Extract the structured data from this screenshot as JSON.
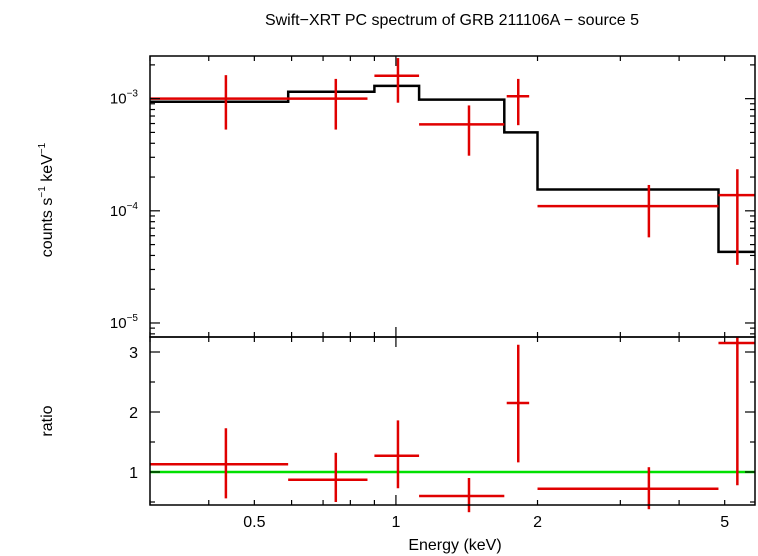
{
  "chart_data": {
    "type": "scatter",
    "title": "Swift−XRT PC spectrum of GRB 211106A − source 5",
    "xlabel": "Energy (keV)",
    "x_scale": "log",
    "xlim": [
      0.3,
      5.8
    ],
    "x_ticks": [
      {
        "value": 0.5,
        "label": "0.5"
      },
      {
        "value": 1,
        "label": "1"
      },
      {
        "value": 2,
        "label": "2"
      },
      {
        "value": 5,
        "label": "5"
      }
    ],
    "panels": [
      {
        "id": "spectrum",
        "ylabel_main": "counts s",
        "ylabel_sup1": "−1",
        "ylabel_mid": " keV",
        "ylabel_sup2": "−1",
        "y_scale": "log",
        "ylim": [
          7.5e-06,
          0.0024
        ],
        "y_ticks": [
          {
            "value": 0.001,
            "base": "10",
            "exp": "−3"
          },
          {
            "value": 0.0001,
            "base": "10",
            "exp": "−4"
          },
          {
            "value": 1e-05,
            "base": "10",
            "exp": "−5"
          }
        ],
        "series": [
          {
            "type": "errorbar",
            "color": "#e00000",
            "points": [
              {
                "x": 0.435,
                "xlo": 0.3,
                "xhi": 0.59,
                "y": 0.001,
                "ylo": 0.00053,
                "yhi": 0.00162
              },
              {
                "x": 0.745,
                "xlo": 0.59,
                "xhi": 0.87,
                "y": 0.001,
                "ylo": 0.00053,
                "yhi": 0.0015
              },
              {
                "x": 1.01,
                "xlo": 0.9,
                "xhi": 1.12,
                "y": 0.0016,
                "ylo": 0.00092,
                "yhi": 0.0023
              },
              {
                "x": 1.43,
                "xlo": 1.12,
                "xhi": 1.7,
                "y": 0.00059,
                "ylo": 0.00031,
                "yhi": 0.00087
              },
              {
                "x": 1.82,
                "xlo": 1.72,
                "xhi": 1.92,
                "y": 0.00105,
                "ylo": 0.00058,
                "yhi": 0.0015
              },
              {
                "x": 3.45,
                "xlo": 2.0,
                "xhi": 4.85,
                "y": 0.00011,
                "ylo": 5.8e-05,
                "yhi": 0.00017
              },
              {
                "x": 5.32,
                "xlo": 4.85,
                "xhi": 5.8,
                "y": 0.000138,
                "ylo": 3.3e-05,
                "yhi": 0.000235
              }
            ]
          },
          {
            "type": "step",
            "color": "#000000",
            "edges": [
              0.3,
              0.59,
              0.9,
              1.12,
              1.7,
              2.0,
              4.85,
              5.8
            ],
            "values": [
              0.00094,
              0.00115,
              0.0013,
              0.00098,
              0.0005,
              0.000155,
              4.3e-05
            ]
          }
        ]
      },
      {
        "id": "ratio",
        "ylabel": "ratio",
        "y_scale": "linear",
        "ylim": [
          0.45,
          3.25
        ],
        "y_ticks": [
          {
            "value": 1,
            "label": "1"
          },
          {
            "value": 2,
            "label": "2"
          },
          {
            "value": 3,
            "label": "3"
          }
        ],
        "reference_line": {
          "y": 1,
          "color": "#00e000"
        },
        "series": [
          {
            "type": "errorbar",
            "color": "#e00000",
            "points": [
              {
                "x": 0.435,
                "xlo": 0.3,
                "xhi": 0.59,
                "y": 1.13,
                "ylo": 0.56,
                "yhi": 1.73
              },
              {
                "x": 0.745,
                "xlo": 0.59,
                "xhi": 0.87,
                "y": 0.87,
                "ylo": 0.5,
                "yhi": 1.32
              },
              {
                "x": 1.01,
                "xlo": 0.9,
                "xhi": 1.12,
                "y": 1.27,
                "ylo": 0.73,
                "yhi": 1.86
              },
              {
                "x": 1.43,
                "xlo": 1.12,
                "xhi": 1.7,
                "y": 0.6,
                "ylo": 0.33,
                "yhi": 0.9
              },
              {
                "x": 1.82,
                "xlo": 1.72,
                "xhi": 1.92,
                "y": 2.15,
                "ylo": 1.16,
                "yhi": 3.12
              },
              {
                "x": 3.45,
                "xlo": 2.0,
                "xhi": 4.85,
                "y": 0.72,
                "ylo": 0.38,
                "yhi": 1.08
              },
              {
                "x": 5.32,
                "xlo": 4.85,
                "xhi": 5.8,
                "y": 3.15,
                "ylo": 0.78,
                "yhi": 3.25
              }
            ]
          }
        ]
      }
    ]
  }
}
